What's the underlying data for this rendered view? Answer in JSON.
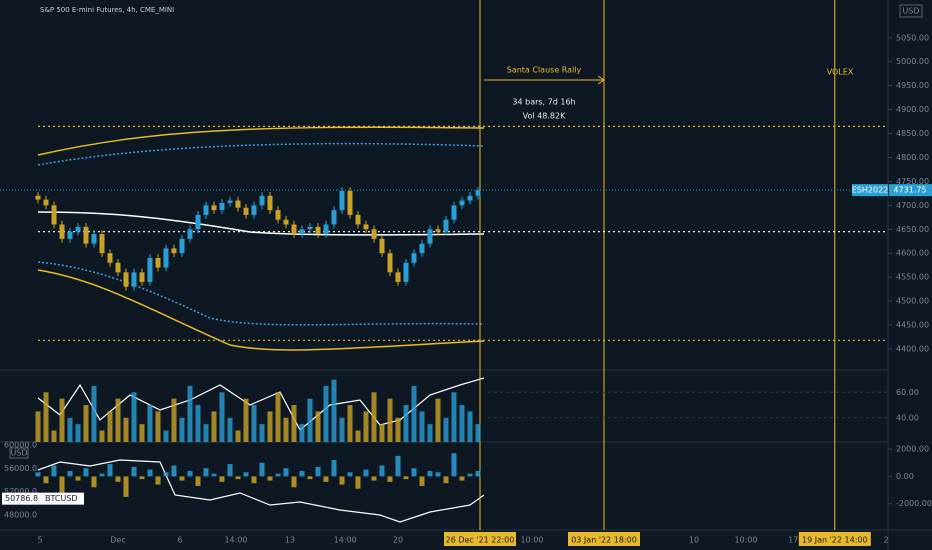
{
  "chart_data": {
    "type": "candlestick",
    "title": "S&P 500 E-mini Futures, 4h, CME_MINI",
    "currency": "USD",
    "symbol": "ESH2022",
    "last_price": 4731.75,
    "last_price_label": "4731.75",
    "annotations": {
      "range_title": "Santa Clause Rally",
      "range_bars": "34 bars, 7d 16h",
      "range_vol": "Vol 48.82K",
      "event": "VOLEX"
    },
    "xlim": [
      -4.75,
      106.25
    ],
    "xticks": [
      {
        "value": 0.25,
        "label": "5"
      },
      {
        "value": 10,
        "label": "Dec"
      },
      {
        "value": 17.75,
        "label": "6"
      },
      {
        "value": 24.75,
        "label": "14:00"
      },
      {
        "value": 31.5,
        "label": "13"
      },
      {
        "value": 38.4,
        "label": "14:00"
      },
      {
        "value": 45,
        "label": "20"
      },
      {
        "value": 55.25,
        "label": "26 Dec '21  22:00"
      },
      {
        "value": 61.75,
        "label": "10:00"
      },
      {
        "value": 70.75,
        "label": "03 Jan '22  18:00"
      },
      {
        "value": 82,
        "label": "10"
      },
      {
        "value": 88.5,
        "label": "10:00"
      },
      {
        "value": 94.4,
        "label": "17"
      },
      {
        "value": 99.6,
        "label": "19 Jan '22  14:00"
      },
      {
        "value": 106,
        "label": "2"
      }
    ],
    "markers": [
      55.25,
      70.75,
      99.6
    ],
    "levels": [
      4865,
      4645,
      4418
    ],
    "ylim": [
      4356,
      5129
    ],
    "yticks": [
      {
        "value": 4400,
        "label": "4400.00"
      },
      {
        "value": 4450,
        "label": "4450.00"
      },
      {
        "value": 4500,
        "label": "4500.00"
      },
      {
        "value": 4550,
        "label": "4550.00"
      },
      {
        "value": 4600,
        "label": "4600.00"
      },
      {
        "value": 4650,
        "label": "4650.00"
      },
      {
        "value": 4700,
        "label": "4700.00"
      },
      {
        "value": 4750,
        "label": "4750.00"
      },
      {
        "value": 4800,
        "label": "4800.00"
      },
      {
        "value": 4850,
        "label": "4850.00"
      },
      {
        "value": 4900,
        "label": "4900.00"
      },
      {
        "value": 4950,
        "label": "4950.00"
      },
      {
        "value": 5000,
        "label": "5000.00"
      },
      {
        "value": 5050,
        "label": "5050.00"
      }
    ],
    "up_color": "#2a9fd6",
    "down_color": "#c9a227",
    "open": [
      4720,
      4712,
      4700,
      4660,
      4630,
      4645,
      4655,
      4620,
      4640,
      4600,
      4580,
      4560,
      4530,
      4560,
      4540,
      4590,
      4570,
      4610,
      4600,
      4630,
      4650,
      4680,
      4700,
      4690,
      4705,
      4710,
      4695,
      4680,
      4700,
      4720,
      4690,
      4670,
      4660,
      4640,
      4650,
      4655,
      4640,
      4660,
      4690,
      4730,
      4680,
      4660,
      4650,
      4630,
      4600,
      4560,
      4540,
      4580,
      4600,
      4620,
      4650,
      4645,
      4670,
      4700,
      4710,
      4720
    ],
    "high": [
      4728,
      4720,
      4708,
      4668,
      4653,
      4663,
      4663,
      4648,
      4648,
      4608,
      4588,
      4568,
      4568,
      4568,
      4598,
      4598,
      4618,
      4618,
      4638,
      4658,
      4688,
      4708,
      4708,
      4713,
      4718,
      4718,
      4703,
      4708,
      4728,
      4728,
      4698,
      4678,
      4668,
      4658,
      4663,
      4663,
      4668,
      4698,
      4738,
      4738,
      4688,
      4668,
      4658,
      4638,
      4608,
      4568,
      4588,
      4608,
      4628,
      4658,
      4658,
      4678,
      4708,
      4718,
      4728,
      4738
    ],
    "low": [
      4704,
      4692,
      4652,
      4622,
      4622,
      4637,
      4612,
      4612,
      4592,
      4572,
      4552,
      4522,
      4522,
      4532,
      4532,
      4562,
      4562,
      4592,
      4592,
      4622,
      4642,
      4672,
      4682,
      4682,
      4697,
      4687,
      4672,
      4672,
      4692,
      4682,
      4662,
      4652,
      4632,
      4632,
      4642,
      4632,
      4632,
      4652,
      4682,
      4672,
      4652,
      4642,
      4622,
      4592,
      4552,
      4532,
      4532,
      4572,
      4592,
      4612,
      4637,
      4637,
      4662,
      4692,
      4702,
      4712
    ],
    "close": [
      4712,
      4700,
      4660,
      4630,
      4645,
      4655,
      4620,
      4640,
      4600,
      4580,
      4560,
      4530,
      4560,
      4540,
      4590,
      4570,
      4610,
      4600,
      4630,
      4650,
      4680,
      4700,
      4690,
      4705,
      4710,
      4695,
      4680,
      4700,
      4720,
      4690,
      4670,
      4660,
      4640,
      4650,
      4655,
      4640,
      4660,
      4690,
      4730,
      4680,
      4660,
      4650,
      4630,
      4600,
      4560,
      4540,
      4580,
      4600,
      4620,
      4650,
      4645,
      4670,
      4700,
      4710,
      4720,
      4731.75
    ],
    "panel1": {
      "ylim": [
        21,
        77.5
      ],
      "yticks": [
        {
          "value": 60,
          "label": "60.00"
        },
        {
          "value": 40,
          "label": "40.00"
        }
      ],
      "values": [
        45,
        60,
        30,
        55,
        40,
        35,
        50,
        65,
        30,
        45,
        55,
        40,
        60,
        35,
        50,
        45,
        30,
        55,
        40,
        65,
        50,
        35,
        45,
        60,
        40,
        30,
        55,
        50,
        35,
        45,
        60,
        40,
        50,
        35,
        55,
        45,
        65,
        70,
        40,
        50,
        30,
        45,
        60,
        35,
        55,
        40,
        50,
        65,
        45,
        35,
        55,
        40,
        60,
        50,
        45,
        35
      ]
    },
    "panel2": {
      "ylim": [
        -3926,
        2519
      ],
      "yticks": [
        {
          "value": 2000,
          "label": "2000.00"
        },
        {
          "value": 0,
          "label": "0.00"
        },
        {
          "value": -2000,
          "label": "-2000.00"
        }
      ],
      "values": [
        300,
        -500,
        800,
        -1200,
        400,
        -300,
        600,
        -800,
        200,
        900,
        -400,
        -1500,
        700,
        -200,
        500,
        -600,
        300,
        800,
        -300,
        400,
        -700,
        600,
        200,
        -400,
        900,
        -200,
        300,
        -500,
        1000,
        -300,
        200,
        600,
        -800,
        400,
        -200,
        700,
        -400,
        1200,
        -600,
        300,
        -900,
        500,
        -300,
        800,
        -400,
        1500,
        -200,
        600,
        -700,
        400,
        300,
        -500,
        1700,
        -300,
        200,
        400
      ],
      "left_axis": {
        "currency": "USD",
        "symbol": "BTCUSD",
        "ylim": [
          45400,
          60522
        ],
        "last": 50786.8,
        "last_label": "50786.8",
        "yticks": [
          {
            "value": 60000,
            "label": "60000.0"
          },
          {
            "value": 56000,
            "label": "56000.0"
          },
          {
            "value": 52000,
            "label": "52000.0"
          },
          {
            "value": 48000,
            "label": "48000.0"
          }
        ]
      }
    }
  }
}
